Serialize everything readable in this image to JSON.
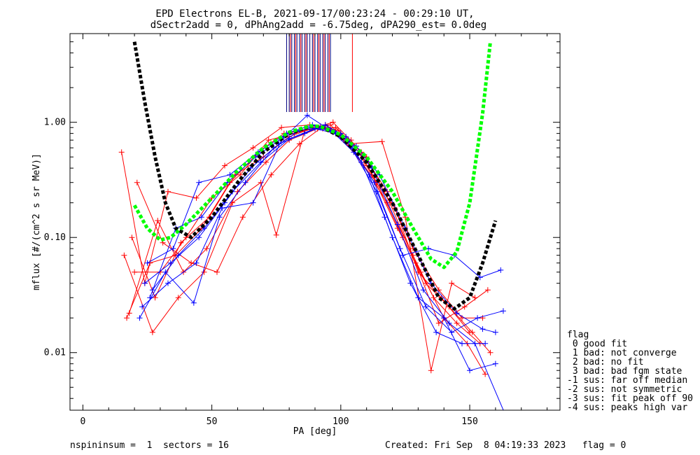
{
  "title_line1": "EPD Electrons EL-B, 2021-09-17/00:23:24 - 00:29:10 UT,",
  "title_line2": "dSectr2add = 0, dPhAng2add = -6.75deg, dPA290_est=   0.0deg",
  "footer_left": "nspininsum =  1  sectors = 16",
  "footer_right": "Created: Fri Sep  8 04:19:33 2023   flag = 0",
  "flag_legend": {
    "title": "flag",
    "entries": [
      " 0 good fit",
      " 1 bad: not converge",
      " 2 bad: no fit",
      " 3 bad: bad fgm state",
      "-1 sus: far off median",
      "-2 sus: not symmetric",
      "-3 sus: fit peak off 90",
      "-4 sus: peaks high var"
    ]
  },
  "colors": {
    "red": "#ff0000",
    "blue": "#0000ff",
    "green": "#00ff00",
    "black": "#000000",
    "navy": "#000080"
  },
  "chart_data": {
    "type": "line",
    "xlabel": "PA [deg]",
    "ylabel": "mflux [#/(cm^2 s sr MeV)]",
    "xlim": [
      -5,
      185
    ],
    "ylim_log": [
      -2.5,
      0.77
    ],
    "log_y": true,
    "xticks": [
      0,
      50,
      100,
      150
    ],
    "xtick_labels": [
      "0",
      "50",
      "100",
      "150"
    ],
    "yticks": [
      0.01,
      0.1,
      1.0
    ],
    "ytick_labels": [
      "0.01",
      "0.10",
      "1.00"
    ],
    "grid": false,
    "series": [
      {
        "color": "red",
        "x": [
          15,
          24,
          33,
          44,
          55,
          66,
          77,
          88,
          93,
          100,
          108,
          118,
          128,
          136,
          145,
          154
        ],
        "y": [
          0.55,
          0.04,
          0.25,
          0.22,
          0.42,
          0.6,
          0.9,
          0.95,
          0.88,
          0.75,
          0.45,
          0.2,
          0.07,
          0.03,
          0.018,
          0.012
        ]
      },
      {
        "color": "red",
        "x": [
          17,
          26,
          36,
          46,
          57,
          68,
          78,
          86,
          95,
          104,
          112,
          122,
          131,
          140,
          149,
          156
        ],
        "y": [
          0.02,
          0.06,
          0.07,
          0.12,
          0.3,
          0.55,
          0.8,
          0.85,
          0.9,
          0.7,
          0.35,
          0.12,
          0.05,
          0.02,
          0.012,
          0.0065
        ]
      },
      {
        "color": "red",
        "x": [
          19,
          28,
          38,
          49,
          59,
          70,
          80,
          90,
          97,
          106,
          114,
          124,
          133,
          142,
          151,
          158
        ],
        "y": [
          0.1,
          0.03,
          0.09,
          0.15,
          0.35,
          0.5,
          0.75,
          0.9,
          1.0,
          0.62,
          0.3,
          0.1,
          0.04,
          0.025,
          0.015,
          0.01
        ]
      },
      {
        "color": "red",
        "x": [
          16,
          27,
          37,
          47,
          58,
          69,
          75,
          86,
          96,
          103,
          116,
          125,
          135,
          143,
          152
        ],
        "y": [
          0.07,
          0.015,
          0.03,
          0.05,
          0.2,
          0.3,
          0.105,
          0.85,
          0.95,
          0.65,
          0.68,
          0.15,
          0.007,
          0.04,
          0.03
        ]
      },
      {
        "color": "red",
        "x": [
          20,
          30,
          40,
          50,
          61,
          72,
          82,
          92,
          99,
          108,
          118,
          128,
          138,
          147,
          155
        ],
        "y": [
          0.05,
          0.05,
          0.1,
          0.22,
          0.35,
          0.7,
          0.8,
          0.92,
          0.85,
          0.55,
          0.25,
          0.08,
          0.035,
          0.02,
          0.02
        ]
      },
      {
        "color": "red",
        "x": [
          18,
          29,
          39,
          48,
          60,
          71,
          80,
          91,
          98,
          110,
          119,
          129,
          138,
          148,
          157
        ],
        "y": [
          0.022,
          0.14,
          0.05,
          0.08,
          0.25,
          0.45,
          0.7,
          0.88,
          0.9,
          0.5,
          0.2,
          0.06,
          0.018,
          0.025,
          0.035
        ]
      },
      {
        "color": "red",
        "x": [
          21,
          31,
          42,
          52,
          62,
          73,
          84,
          94,
          101,
          109,
          121,
          130,
          139,
          150
        ],
        "y": [
          0.3,
          0.09,
          0.06,
          0.05,
          0.15,
          0.35,
          0.65,
          0.95,
          0.7,
          0.42,
          0.18,
          0.05,
          0.03,
          0.015
        ]
      },
      {
        "color": "blue",
        "x": [
          22,
          32,
          43,
          53,
          63,
          74,
          84,
          92,
          100,
          108,
          117,
          127,
          137,
          147,
          156
        ],
        "y": [
          0.02,
          0.05,
          0.027,
          0.15,
          0.3,
          0.6,
          0.85,
          0.9,
          0.8,
          0.45,
          0.15,
          0.04,
          0.015,
          0.012,
          0.012
        ]
      },
      {
        "color": "blue",
        "x": [
          24,
          34,
          45,
          55,
          65,
          76,
          86,
          94,
          102,
          111,
          120,
          130,
          140,
          150,
          160
        ],
        "y": [
          0.04,
          0.06,
          0.1,
          0.2,
          0.4,
          0.65,
          0.8,
          0.95,
          0.75,
          0.35,
          0.1,
          0.03,
          0.02,
          0.007,
          0.008
        ]
      },
      {
        "color": "blue",
        "x": [
          26,
          36,
          46,
          56,
          67,
          78,
          88,
          96,
          104,
          113,
          123,
          133,
          143,
          153,
          163
        ],
        "y": [
          0.03,
          0.12,
          0.15,
          0.3,
          0.5,
          0.75,
          0.9,
          0.85,
          0.62,
          0.3,
          0.08,
          0.025,
          0.015,
          0.02,
          0.023
        ]
      },
      {
        "color": "blue",
        "x": [
          25,
          35,
          45,
          57,
          68,
          79,
          89,
          97,
          105,
          114,
          124,
          134,
          144,
          154,
          162
        ],
        "y": [
          0.06,
          0.08,
          0.3,
          0.35,
          0.55,
          0.8,
          0.95,
          0.82,
          0.55,
          0.25,
          0.07,
          0.08,
          0.07,
          0.045,
          0.052
        ]
      },
      {
        "color": "blue",
        "x": [
          23,
          33,
          44,
          54,
          66,
          77,
          87,
          95,
          103,
          112,
          122,
          132,
          142,
          152,
          165
        ],
        "y": [
          0.025,
          0.04,
          0.06,
          0.18,
          0.2,
          0.7,
          1.15,
          0.88,
          0.7,
          0.4,
          0.13,
          0.035,
          0.018,
          0.012,
          0.0025
        ]
      },
      {
        "color": "blue",
        "x": [
          27,
          37,
          47,
          58,
          69,
          80,
          90,
          98,
          106,
          115,
          125,
          135,
          145,
          155,
          160
        ],
        "y": [
          0.035,
          0.07,
          0.12,
          0.25,
          0.45,
          0.72,
          0.88,
          0.8,
          0.62,
          0.35,
          0.12,
          0.04,
          0.022,
          0.016,
          0.015
        ]
      }
    ],
    "fits": [
      {
        "name": "black-fit",
        "color": "black",
        "x": [
          20,
          24,
          28,
          32,
          36,
          42,
          50,
          60,
          70,
          80,
          88,
          92,
          100,
          110,
          120,
          130,
          138,
          144,
          150,
          155,
          160
        ],
        "y": [
          5.0,
          1.5,
          0.5,
          0.2,
          0.12,
          0.1,
          0.15,
          0.3,
          0.55,
          0.8,
          0.92,
          0.92,
          0.75,
          0.45,
          0.2,
          0.07,
          0.03,
          0.024,
          0.03,
          0.06,
          0.14
        ]
      },
      {
        "name": "green-fit",
        "color": "green",
        "x": [
          20,
          25,
          30,
          34,
          40,
          50,
          60,
          70,
          80,
          88,
          92,
          100,
          110,
          120,
          128,
          135,
          140,
          145,
          150,
          155,
          158
        ],
        "y": [
          0.19,
          0.12,
          0.095,
          0.1,
          0.13,
          0.22,
          0.38,
          0.6,
          0.82,
          0.93,
          0.92,
          0.78,
          0.5,
          0.25,
          0.12,
          0.065,
          0.055,
          0.075,
          0.2,
          1.2,
          5.0
        ]
      }
    ],
    "pa_markers": {
      "navy": [
        79,
        80,
        81,
        82,
        83,
        84,
        85,
        86,
        87,
        88,
        89,
        90,
        91,
        92,
        93,
        94,
        95,
        96
      ],
      "red": [
        80.5,
        82.5,
        84.5,
        86.5,
        89.5,
        91.5,
        93.5,
        95.5,
        104.5
      ]
    }
  }
}
